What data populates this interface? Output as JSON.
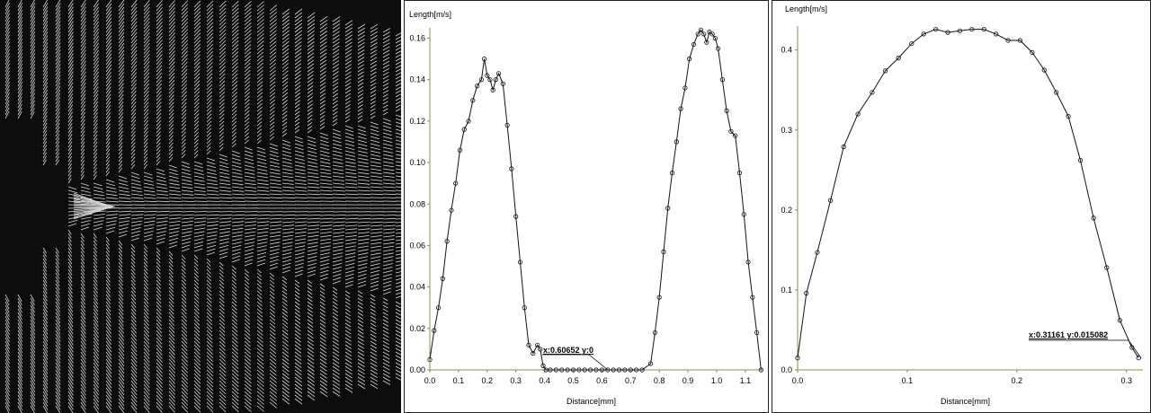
{
  "colors": {
    "vector_bg": "#0d0d0d",
    "vector_stroke": "#d8d8d8",
    "axis": "#8b8b5a",
    "series": "#111111"
  },
  "chart_data": [
    {
      "type": "line",
      "xlabel": "Distance[mm]",
      "ylabel": "Length[m/s]",
      "xlim": [
        0,
        1.16
      ],
      "ylim": [
        0,
        0.165
      ],
      "xticks": [
        "0.0",
        "0.1",
        "0.2",
        "0.3",
        "0.4",
        "0.5",
        "0.6",
        "0.7",
        "0.8",
        "0.9",
        "1.0",
        "1.1"
      ],
      "yticks": [
        "0.00",
        "0.02",
        "0.04",
        "0.06",
        "0.08",
        "0.10",
        "0.12",
        "0.14",
        "0.16"
      ],
      "annotation": "x:0.60652 y:0",
      "series": [
        {
          "x": [
            0.0,
            0.015,
            0.03,
            0.045,
            0.06,
            0.075,
            0.09,
            0.105,
            0.12,
            0.135,
            0.15,
            0.165,
            0.18,
            0.19,
            0.2,
            0.21,
            0.22,
            0.23,
            0.24,
            0.255,
            0.27,
            0.285,
            0.3,
            0.315,
            0.33,
            0.345,
            0.36,
            0.375,
            0.385,
            0.395,
            0.405,
            0.42,
            0.44,
            0.46,
            0.48,
            0.5,
            0.52,
            0.54,
            0.56,
            0.58,
            0.6,
            0.62,
            0.64,
            0.66,
            0.68,
            0.7,
            0.72,
            0.74,
            0.77,
            0.785,
            0.8,
            0.815,
            0.83,
            0.845,
            0.86,
            0.875,
            0.89,
            0.905,
            0.92,
            0.935,
            0.945,
            0.955,
            0.965,
            0.975,
            0.985,
            0.995,
            1.005,
            1.02,
            1.035,
            1.05,
            1.065,
            1.08,
            1.095,
            1.11,
            1.125,
            1.14,
            1.155
          ],
          "y": [
            0.005,
            0.019,
            0.03,
            0.044,
            0.062,
            0.077,
            0.09,
            0.106,
            0.116,
            0.12,
            0.13,
            0.137,
            0.14,
            0.15,
            0.142,
            0.14,
            0.135,
            0.14,
            0.143,
            0.138,
            0.118,
            0.097,
            0.074,
            0.052,
            0.03,
            0.012,
            0.008,
            0.012,
            0.01,
            0.002,
            0.0,
            0.0,
            0.0,
            0.0,
            0.0,
            0.0,
            0.0,
            0.0,
            0.0,
            0.0,
            0.0,
            0.0,
            0.0,
            0.0,
            0.0,
            0.0,
            0.0,
            0.0,
            0.003,
            0.018,
            0.035,
            0.057,
            0.078,
            0.095,
            0.11,
            0.126,
            0.136,
            0.15,
            0.157,
            0.162,
            0.164,
            0.162,
            0.158,
            0.163,
            0.162,
            0.16,
            0.155,
            0.14,
            0.125,
            0.115,
            0.113,
            0.095,
            0.075,
            0.052,
            0.035,
            0.018,
            0.0
          ]
        }
      ]
    },
    {
      "type": "line",
      "xlabel": "Distance[mm]",
      "ylabel": "Length[m/s]",
      "xlim": [
        0,
        0.315
      ],
      "ylim": [
        0,
        0.43
      ],
      "xticks": [
        "0.0",
        "0.1",
        "0.2",
        "0.3"
      ],
      "yticks": [
        "0.0",
        "0.1",
        "0.2",
        "0.3",
        "0.4"
      ],
      "annotation": "x:0.31161 y:0.015082",
      "series": [
        {
          "x": [
            0.0,
            0.008,
            0.018,
            0.03,
            0.042,
            0.055,
            0.068,
            0.08,
            0.092,
            0.104,
            0.115,
            0.126,
            0.137,
            0.148,
            0.159,
            0.17,
            0.181,
            0.192,
            0.203,
            0.214,
            0.225,
            0.236,
            0.247,
            0.258,
            0.27,
            0.282,
            0.294,
            0.305,
            0.311
          ],
          "y": [
            0.015,
            0.096,
            0.147,
            0.212,
            0.279,
            0.32,
            0.347,
            0.374,
            0.39,
            0.408,
            0.42,
            0.426,
            0.422,
            0.424,
            0.426,
            0.426,
            0.42,
            0.412,
            0.412,
            0.397,
            0.375,
            0.347,
            0.317,
            0.262,
            0.19,
            0.128,
            0.062,
            0.028,
            0.015
          ]
        }
      ]
    }
  ]
}
